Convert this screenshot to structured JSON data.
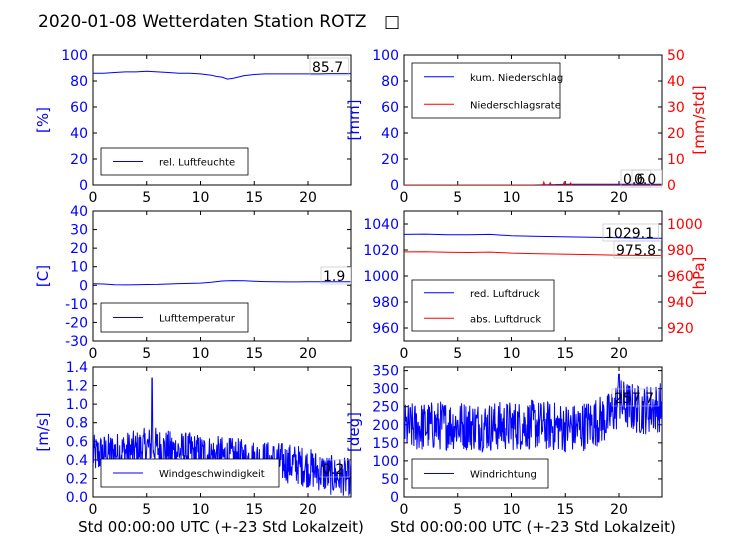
{
  "title": "2020-01-08 Wetterdaten Station ROTZ",
  "title_glyph": "□",
  "colors": {
    "blue": "#0000ff",
    "red": "#ff0000",
    "dark_red": "#8b0000",
    "black": "#000000",
    "frame_bg": "#ffffff"
  },
  "chart_data": [
    {
      "id": "humidity",
      "type": "line",
      "ylabel": "[%]",
      "xlim": [
        0,
        24
      ],
      "ylim": [
        0,
        100
      ],
      "xticks": [
        0,
        5,
        10,
        15,
        20
      ],
      "yticks": [
        0,
        20,
        40,
        60,
        80,
        100
      ],
      "series": [
        {
          "name": "rel. Luftfeuchte",
          "color": "#0000ff",
          "x": [
            0,
            1,
            2,
            3,
            4,
            5,
            6,
            7,
            8,
            9,
            10,
            11,
            11.5,
            12,
            12.5,
            13,
            13.5,
            14,
            15,
            16,
            17,
            18,
            19,
            20,
            21,
            22,
            23,
            24
          ],
          "y": [
            86,
            86,
            86.5,
            87,
            87,
            87.5,
            87,
            86.5,
            86,
            86,
            85.5,
            84.5,
            83.5,
            83,
            81.5,
            82,
            83,
            84,
            85,
            85.5,
            85.5,
            85.5,
            85.5,
            85.5,
            85.5,
            85.7,
            85.7,
            85.7
          ]
        }
      ],
      "current_value": "85.7",
      "legend": "bottom-left"
    },
    {
      "id": "precip",
      "type": "line",
      "ylabel": "[mm]",
      "ylabel_right": "[mm/std]",
      "xlim": [
        0,
        24
      ],
      "ylim": [
        0,
        100
      ],
      "ylim_right": [
        0,
        50
      ],
      "xticks": [
        0,
        5,
        10,
        15,
        20
      ],
      "yticks": [
        0,
        20,
        40,
        60,
        80,
        100
      ],
      "yticks_right": [
        0,
        10,
        20,
        30,
        40,
        50
      ],
      "series": [
        {
          "name": "kum. Niederschlag",
          "color": "#0000ff",
          "axis": "left",
          "x": [
            0,
            12,
            13,
            14,
            15,
            16,
            20,
            24
          ],
          "y": [
            0,
            0,
            0.2,
            0.3,
            0.5,
            0.6,
            0.6,
            0.6
          ]
        },
        {
          "name": "Niederschlagsrate",
          "color": "#ff0000",
          "axis": "right",
          "x": [
            0,
            12.9,
            13.0,
            13.1,
            13.2,
            13.5,
            13.6,
            13.7,
            14.0,
            14.8,
            14.9,
            15.0,
            15.4,
            15.5,
            15.6,
            16.0,
            24
          ],
          "y": [
            0,
            0,
            1.2,
            0,
            0,
            0,
            0.9,
            0,
            0,
            0,
            1.1,
            0,
            0,
            0.8,
            0,
            0,
            0
          ]
        }
      ],
      "current_value": "0.6",
      "current_value_right": "0.0",
      "legend": "top-left"
    },
    {
      "id": "temperature",
      "type": "line",
      "ylabel": "[C]",
      "xlim": [
        0,
        24
      ],
      "ylim": [
        -30,
        40
      ],
      "xticks": [
        0,
        5,
        10,
        15,
        20
      ],
      "yticks": [
        -30,
        -20,
        -10,
        0,
        10,
        20,
        30,
        40
      ],
      "series": [
        {
          "name": "Lufttemperatur",
          "color": "#0000ff",
          "x": [
            0,
            1,
            2,
            3,
            4,
            5,
            6,
            7,
            8,
            9,
            10,
            11,
            12,
            13,
            14,
            15,
            16,
            17,
            18,
            19,
            20,
            21,
            22,
            23,
            24
          ],
          "y": [
            0.8,
            0.7,
            0.3,
            0.2,
            0.3,
            0.4,
            0.5,
            0.7,
            0.9,
            1.0,
            1.2,
            1.6,
            2.3,
            2.5,
            2.4,
            2.2,
            2.0,
            1.9,
            1.8,
            1.8,
            1.9,
            1.9,
            1.9,
            1.9,
            1.9
          ]
        }
      ],
      "current_value": "1.9",
      "legend": "bottom-left"
    },
    {
      "id": "pressure",
      "type": "line",
      "ylabel_right": "[hPa]",
      "xlim": [
        0,
        24
      ],
      "ylim": [
        950,
        1050
      ],
      "ylim_right": [
        910,
        1010
      ],
      "xticks": [
        0,
        5,
        10,
        15,
        20
      ],
      "yticks": [
        960,
        980,
        1000,
        1020,
        1040
      ],
      "yticks_right": [
        920,
        940,
        960,
        980,
        1000
      ],
      "series": [
        {
          "name": "red. Luftdruck",
          "color": "#0000ff",
          "axis": "left",
          "x": [
            0,
            2,
            4,
            6,
            8,
            9,
            10,
            12,
            14,
            16,
            18,
            20,
            22,
            24
          ],
          "y": [
            1032,
            1032.2,
            1031.8,
            1031.7,
            1032,
            1031.5,
            1031,
            1030.6,
            1030.3,
            1030,
            1029.7,
            1029.4,
            1029.1,
            1029.1
          ]
        },
        {
          "name": "abs. Luftdruck",
          "color": "#ff0000",
          "axis": "right",
          "x": [
            0,
            2,
            4,
            6,
            8,
            9,
            10,
            12,
            14,
            16,
            18,
            20,
            22,
            24
          ],
          "y": [
            978.5,
            978.6,
            978.2,
            978.1,
            978.4,
            978,
            977.6,
            977.2,
            976.9,
            976.6,
            976.3,
            976,
            975.8,
            975.8
          ]
        }
      ],
      "current_value": "1029.1",
      "current_value_right": "975.8",
      "legend": "bottom-left"
    },
    {
      "id": "windspeed",
      "type": "line",
      "ylabel": "[m/s]",
      "xlim": [
        0,
        24
      ],
      "ylim": [
        0,
        1.4
      ],
      "xticks": [
        0,
        5,
        10,
        15,
        20
      ],
      "yticks": [
        0.0,
        0.2,
        0.4,
        0.6,
        0.8,
        1.0,
        1.2,
        1.4
      ],
      "series": [
        {
          "name": "Windgeschwindigkeit",
          "color": "#0000ff",
          "noisy": true,
          "samples": 600,
          "level_points": {
            "x": [
              0,
              2,
              4,
              5.5,
              7,
              9,
              11,
              13,
              15,
              17,
              19,
              21,
              22.5,
              24
            ],
            "y": [
              0.45,
              0.48,
              0.5,
              0.55,
              0.5,
              0.48,
              0.45,
              0.42,
              0.4,
              0.38,
              0.35,
              0.28,
              0.22,
              0.2
            ]
          },
          "noise_amplitude": 0.22,
          "peak": {
            "x": 5.5,
            "y": 1.28
          }
        }
      ],
      "current_value": "0.2",
      "legend": "bottom-left"
    },
    {
      "id": "winddir",
      "type": "line",
      "ylabel": "[deg]",
      "xlim": [
        0,
        24
      ],
      "ylim": [
        0,
        360
      ],
      "xticks": [
        0,
        5,
        10,
        15,
        20
      ],
      "yticks": [
        0,
        50,
        100,
        150,
        200,
        250,
        300,
        350
      ],
      "series": [
        {
          "name": "Windrichtung",
          "color": "#0000ff",
          "noisy": true,
          "samples": 600,
          "level_points": {
            "x": [
              0,
              4,
              8,
              12,
              16,
              19,
              20,
              21,
              22,
              24
            ],
            "y": [
              190,
              200,
              195,
              200,
              190,
              220,
              260,
              250,
              240,
              250
            ]
          },
          "noise_amplitude": 70,
          "peak": {
            "x": 20,
            "y": 340
          }
        }
      ],
      "current_value": "257.7",
      "legend": "bottom-left"
    }
  ],
  "xlabel": "Std 00:00:00 UTC (+-23 Std Lokalzeit)"
}
